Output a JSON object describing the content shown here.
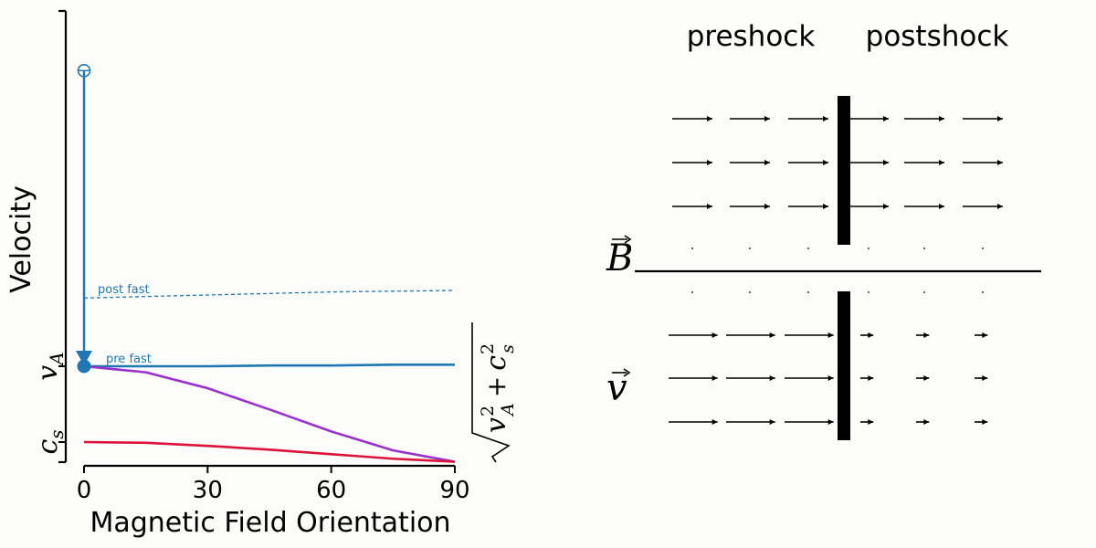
{
  "chart_data": {
    "type": "line",
    "xlabel": "Magnetic Field Orientation",
    "ylabel": "Velocity",
    "xticks": [
      0,
      30,
      60,
      90
    ],
    "ytick_labels": {
      "cs": "c_s",
      "vA": "v_A"
    },
    "xlim": [
      0,
      90
    ],
    "series": [
      {
        "key": "pre_fast",
        "label": "pre fast",
        "color": "#1f77b4",
        "style": "solid",
        "x": [
          0,
          15,
          30,
          45,
          60,
          75,
          90
        ],
        "y": [
          0.0,
          0.0,
          0.0,
          0.01,
          0.01,
          0.02,
          0.02
        ]
      },
      {
        "key": "post_fast",
        "label": "post fast",
        "color": "#1f77b4",
        "style": "dashed",
        "x": [
          0,
          15,
          30,
          45,
          60,
          75,
          90
        ],
        "y": [
          0.9,
          0.92,
          0.94,
          0.96,
          0.98,
          0.99,
          1.0
        ]
      },
      {
        "key": "alfven",
        "color": "#9932cc",
        "style": "solid",
        "x": [
          0,
          15,
          30,
          45,
          60,
          75,
          90
        ],
        "y": [
          0.0,
          -0.08,
          -0.29,
          -0.57,
          -0.86,
          -1.11,
          -1.26
        ]
      },
      {
        "key": "slow",
        "color": "#dc143c",
        "style": "solid",
        "x": [
          0,
          15,
          30,
          45,
          60,
          75,
          90
        ],
        "y": [
          -1.0,
          -1.01,
          -1.05,
          -1.1,
          -1.16,
          -1.22,
          -1.26
        ]
      }
    ],
    "jump_marker": {
      "x": 0,
      "y_from": 3.9,
      "y_to": 0.0,
      "color": "#1f77b4"
    },
    "right_label": "sqrt(v_A^2 + c_s^2)"
  },
  "diagram": {
    "preshock_label": "preshock",
    "postshock_label": "postshock",
    "B_label": "B",
    "v_label": "v",
    "B_preshock_arrow_length": 1.0,
    "B_postshock_arrow_length": 1.0,
    "v_preshock_arrow_length": 1.0,
    "v_postshock_arrow_length": 0.25
  }
}
